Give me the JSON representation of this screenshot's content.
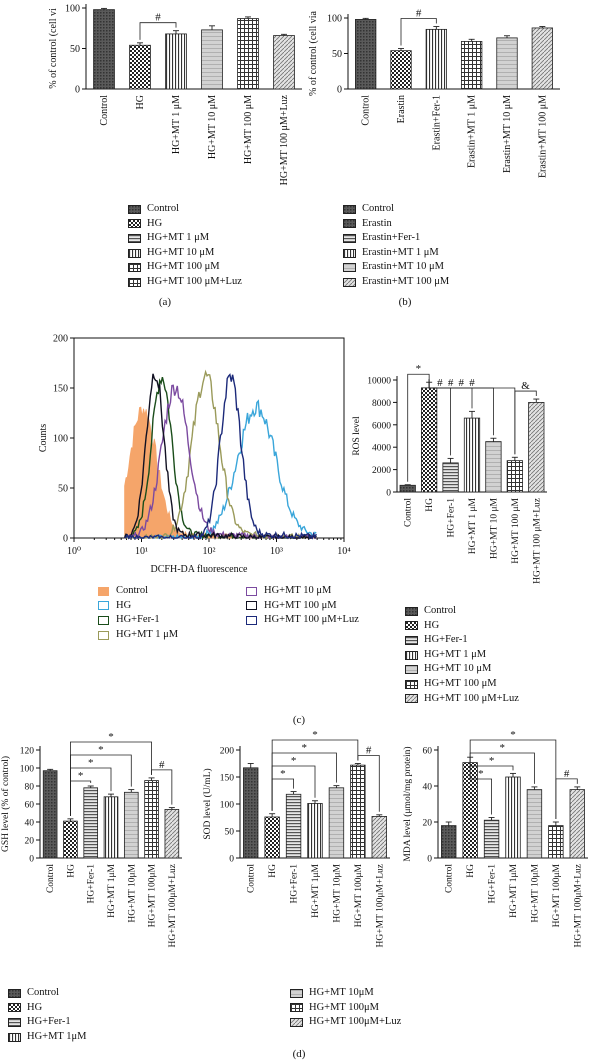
{
  "panel_labels": {
    "a": "(a)",
    "b": "(b)",
    "c": "(c)",
    "d": "(d)"
  },
  "patterns": {
    "Control": "dark",
    "HG": "checker",
    "Fer-1": "hstripe",
    "MT1": "vstripe",
    "MT10": "light",
    "MT100": "grid",
    "MT100Luz": "diag"
  },
  "chart_data": [
    {
      "id": "a",
      "type": "bar",
      "ylabel": "% of control (cell vi",
      "ylim": [
        0,
        100
      ],
      "yticks": [
        0,
        50,
        100
      ],
      "categories": [
        "Control",
        "HG",
        "HG+MT 1 μM",
        "HG+MT 10 μM",
        "HG+MT 100 μM",
        "HG+MT 100 μM+Luz"
      ],
      "values": [
        98,
        54,
        68,
        73,
        87,
        66
      ],
      "errors": [
        1.5,
        3,
        4,
        5,
        2,
        1.5
      ],
      "pattern_keys": [
        "Control",
        "HG",
        "MT1",
        "MT10",
        "MT100",
        "MT100Luz"
      ],
      "annotations": [
        {
          "text": "#",
          "from": 1,
          "to": 2
        }
      ],
      "legend": [
        "Control",
        "HG",
        "HG+MT 1 μM",
        "HG+MT 10 μM",
        "HG+MT 100 μM",
        "HG+MT 100 μM+Luz"
      ],
      "legend_patterns": [
        "Control",
        "HG",
        "Fer-1",
        "MT1",
        "MT100",
        "grid"
      ]
    },
    {
      "id": "b",
      "type": "bar",
      "ylabel": "% of control (cell via",
      "ylim": [
        0,
        100
      ],
      "yticks": [
        0,
        50,
        100
      ],
      "categories": [
        "Control",
        "Erastin",
        "Erastin+Fer-1",
        "Erastin+MT 1 μM",
        "Erastin+MT 10 μM",
        "Erastin+MT 100 μM"
      ],
      "values": [
        98,
        54,
        84,
        67,
        72,
        86
      ],
      "errors": [
        1.5,
        3,
        4,
        3,
        3,
        2
      ],
      "pattern_keys": [
        "Control",
        "HG",
        "MT1",
        "MT100",
        "MT10",
        "MT100Luz"
      ],
      "annotations": [
        {
          "text": "#",
          "from": 1,
          "to": 2
        }
      ],
      "legend": [
        "Control",
        "Erastin",
        "Erastin+Fer-1",
        "Erastin+MT 1 μM",
        "Erastin+MT 10 μM",
        "Erastin+MT 100 μM"
      ],
      "legend_patterns": [
        "Control",
        "Control",
        "Fer-1",
        "MT1",
        "MT10",
        "MT100Luz"
      ]
    },
    {
      "id": "c_hist",
      "type": "line",
      "xlabel": "DCFH-DA fluorescence",
      "ylabel": "Counts",
      "xscale": "log",
      "xlim": [
        1,
        10000
      ],
      "xticks": [
        "10⁰",
        "10¹",
        "10²",
        "10³",
        "10⁴"
      ],
      "ylim": [
        0,
        200
      ],
      "yticks": [
        0,
        50,
        100,
        150,
        200
      ],
      "series": [
        {
          "name": "Control",
          "color": "#f5a56a",
          "fill": true,
          "peak_log": 1.02,
          "height": 128,
          "width": 0.2
        },
        {
          "name": "HG",
          "color": "#3aa6da",
          "peak_log": 2.7,
          "height": 130,
          "width": 0.28
        },
        {
          "name": "HG+Fer-1",
          "color": "#1a4d1a",
          "peak_log": 1.3,
          "height": 160,
          "width": 0.15
        },
        {
          "name": "HG+MT 1 μM",
          "color": "#9a9a5a",
          "peak_log": 1.95,
          "height": 160,
          "width": 0.2
        },
        {
          "name": "HG+MT 10 μM",
          "color": "#7b4aa0",
          "peak_log": 1.5,
          "height": 150,
          "width": 0.2
        },
        {
          "name": "HG+MT 100 μM",
          "color": "#111122",
          "peak_log": 1.2,
          "height": 165,
          "width": 0.13
        },
        {
          "name": "HG+MT 100 μM+Luz",
          "color": "#1c2a7a",
          "peak_log": 2.32,
          "height": 160,
          "width": 0.15
        }
      ],
      "legend": [
        "Control",
        "HG",
        "HG+Fer-1",
        "HG+MT 1 μM",
        "HG+MT 10 μM",
        "HG+MT 100 μM",
        "HG+MT 100 μM+Luz"
      ]
    },
    {
      "id": "c_bar",
      "type": "bar",
      "ylabel": "ROS level",
      "ylim": [
        0,
        10000
      ],
      "yticks": [
        0,
        2000,
        4000,
        6000,
        8000,
        10000
      ],
      "categories": [
        "Control",
        "HG",
        "HG+Fer-1",
        "HG+MT 1 μM",
        "HG+MT 10 μM",
        "HG+MT 100 μM",
        "HG+MT 100 μM+Luz"
      ],
      "values": [
        600,
        9300,
        2600,
        6600,
        4500,
        2800,
        8000
      ],
      "errors": [
        50,
        500,
        400,
        600,
        300,
        300,
        300
      ],
      "pattern_keys": [
        "Control",
        "HG",
        "Fer-1",
        "MT1",
        "MT10",
        "MT100",
        "MT100Luz"
      ],
      "annotations": [
        {
          "text": "*",
          "from": 0,
          "to": 1
        },
        {
          "text": "#",
          "from": 1,
          "to": 2
        },
        {
          "text": "#",
          "from": 1,
          "to": 3
        },
        {
          "text": "#",
          "from": 1,
          "to": 4
        },
        {
          "text": "#",
          "from": 1,
          "to": 5
        },
        {
          "text": "&",
          "from": 5,
          "to": 6
        }
      ],
      "legend": [
        "Control",
        "HG",
        "HG+Fer-1",
        "HG+MT 1 μM",
        "HG+MT 10 μM",
        "HG+MT 100 μM",
        "HG+MT 100 μM+Luz"
      ]
    },
    {
      "id": "d1",
      "type": "bar",
      "ylabel": "GSH level (% of control)",
      "ylim": [
        0,
        120
      ],
      "yticks": [
        0,
        20,
        40,
        60,
        80,
        100,
        120
      ],
      "categories": [
        "Control",
        "HG",
        "HG+Fer-1",
        "HG+MT 1μM",
        "HG+MT 10μM",
        "HG+MT 100μM",
        "HG+MT 100μM+Luz"
      ],
      "values": [
        97,
        41,
        78,
        68,
        73,
        86,
        54
      ],
      "errors": [
        1.5,
        2.5,
        2,
        3,
        3,
        3,
        2
      ],
      "pattern_keys": [
        "Control",
        "HG",
        "Fer-1",
        "MT1",
        "MT10",
        "MT100",
        "MT100Luz"
      ],
      "annotations": [
        {
          "text": "*",
          "from": 1,
          "to": 2
        },
        {
          "text": "*",
          "from": 1,
          "to": 3
        },
        {
          "text": "*",
          "from": 1,
          "to": 4
        },
        {
          "text": "*",
          "from": 1,
          "to": 5
        },
        {
          "text": "#",
          "from": 5,
          "to": 6
        }
      ]
    },
    {
      "id": "d2",
      "type": "bar",
      "ylabel": "SOD level (U/mL)",
      "ylim": [
        0,
        200
      ],
      "yticks": [
        0,
        50,
        100,
        150,
        200
      ],
      "categories": [
        "Control",
        "HG",
        "HG+Fer-1",
        "HG+MT 1μM",
        "HG+MT 10μM",
        "HG+MT 100μM",
        "HG+MT 100μM+Luz"
      ],
      "values": [
        167,
        76,
        118,
        101,
        130,
        172,
        77
      ],
      "errors": [
        8,
        6,
        5,
        5,
        4,
        3,
        3
      ],
      "pattern_keys": [
        "Control",
        "HG",
        "Fer-1",
        "MT1",
        "MT10",
        "MT100",
        "MT100Luz"
      ],
      "annotations": [
        {
          "text": "*",
          "from": 1,
          "to": 2
        },
        {
          "text": "*",
          "from": 1,
          "to": 3
        },
        {
          "text": "*",
          "from": 1,
          "to": 4
        },
        {
          "text": "*",
          "from": 1,
          "to": 5
        },
        {
          "text": "#",
          "from": 5,
          "to": 6
        }
      ]
    },
    {
      "id": "d3",
      "type": "bar",
      "ylabel": "MDA level (μmol/mg protein)",
      "ylim": [
        0,
        60
      ],
      "yticks": [
        0,
        20,
        40,
        60
      ],
      "categories": [
        "Control",
        "HG",
        "HG+Fer-1",
        "HG+MT 1μM",
        "HG+MT 10μM",
        "HG+MT 100μM",
        "HG+MT 100μM+Luz"
      ],
      "values": [
        18,
        53,
        21,
        45,
        38,
        18,
        38
      ],
      "errors": [
        2,
        3,
        1.5,
        2,
        1.5,
        2,
        1.5
      ],
      "pattern_keys": [
        "Control",
        "HG",
        "Fer-1",
        "MT1",
        "MT10",
        "MT100",
        "MT100Luz"
      ],
      "annotations": [
        {
          "text": "*",
          "from": 1,
          "to": 2
        },
        {
          "text": "*",
          "from": 1,
          "to": 3
        },
        {
          "text": "*",
          "from": 1,
          "to": 4
        },
        {
          "text": "*",
          "from": 1,
          "to": 5
        },
        {
          "text": "#",
          "from": 5,
          "to": 6
        }
      ]
    }
  ],
  "legend_d_left": [
    "Control",
    "HG",
    "HG+Fer-1",
    "HG+MT 1μM"
  ],
  "legend_d_right": [
    "HG+MT 10μM",
    "HG+MT 100μM",
    "HG+MT 100μM+Luz"
  ]
}
